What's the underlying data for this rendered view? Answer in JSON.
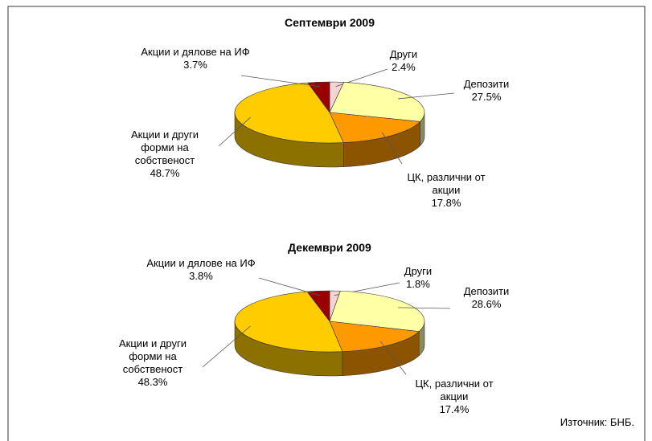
{
  "chart_data": [
    {
      "type": "pie3d",
      "title": "Септември 2009",
      "categories": [
        "Други",
        "Депозити",
        "ЦК, различни от акции",
        "Акции и други форми на собственост",
        "Акции и дялове на ИФ"
      ],
      "values": [
        2.4,
        27.5,
        17.8,
        48.7,
        3.7
      ],
      "value_labels": [
        "2.4%",
        "27.5%",
        "17.8%",
        "48.7%",
        "3.7%"
      ],
      "colors": [
        "#f5d3d3",
        "#ffffa6",
        "#ff9900",
        "#ffcc00",
        "#990000"
      ]
    },
    {
      "type": "pie3d",
      "title": "Декември 2009",
      "categories": [
        "Други",
        "Депозити",
        "ЦК, различни от акции",
        "Акции и други форми на собственост",
        "Акции и дялове на ИФ"
      ],
      "values": [
        1.8,
        28.6,
        17.4,
        48.3,
        3.8
      ],
      "value_labels": [
        "1.8%",
        "28.6%",
        "17.4%",
        "48.3%",
        "3.8%"
      ],
      "colors": [
        "#f5d3d3",
        "#ffffa6",
        "#ff9900",
        "#ffcc00",
        "#990000"
      ]
    }
  ],
  "source": "Източник: БНБ."
}
